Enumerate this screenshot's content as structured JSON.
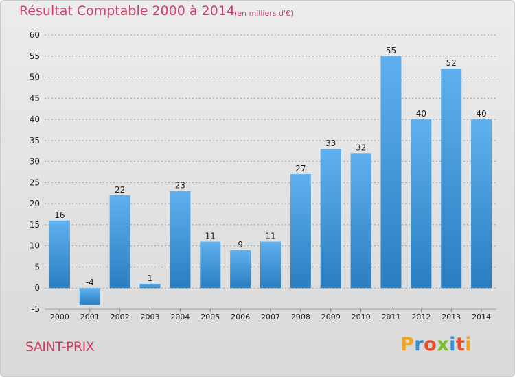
{
  "header": {
    "title": "Résultat Comptable 2000 à 2014",
    "unit": "(en milliers d'€)"
  },
  "footer": {
    "commune": "SAINT-PRIX",
    "brand": "Proxiti",
    "brand_letter_colors": [
      "#f0a51d",
      "#2f8fd8",
      "#e9502a",
      "#7cbf2f",
      "#2f8fd8",
      "#e9502a",
      "#f0a51d"
    ]
  },
  "colors": {
    "title": "#d23d63",
    "bar_top": "#5fb0ee",
    "bar_bottom": "#2a7ec0",
    "grid": "#9aa0a6",
    "axis_text": "#222222"
  },
  "chart_data": {
    "type": "bar",
    "title": "Résultat Comptable 2000 à 2014",
    "subtitle": "(en milliers d'€)",
    "categories": [
      "2000",
      "2001",
      "2002",
      "2003",
      "2004",
      "2005",
      "2006",
      "2007",
      "2008",
      "2009",
      "2010",
      "2011",
      "2012",
      "2013",
      "2014"
    ],
    "values": [
      16,
      -4,
      22,
      1,
      23,
      11,
      9,
      11,
      27,
      33,
      32,
      55,
      40,
      52,
      40
    ],
    "data_labels": [
      "16",
      "-4",
      "22",
      "1",
      "23",
      "11",
      "9",
      "11",
      "27",
      "33",
      "32",
      "55",
      "40",
      "52",
      "40"
    ],
    "yticks": [
      "-5",
      "0",
      "5",
      "10",
      "15",
      "20",
      "25",
      "30",
      "35",
      "40",
      "45",
      "50",
      "55",
      "60"
    ],
    "ylim": [
      -5,
      60
    ],
    "grid": true,
    "legend": "none"
  }
}
